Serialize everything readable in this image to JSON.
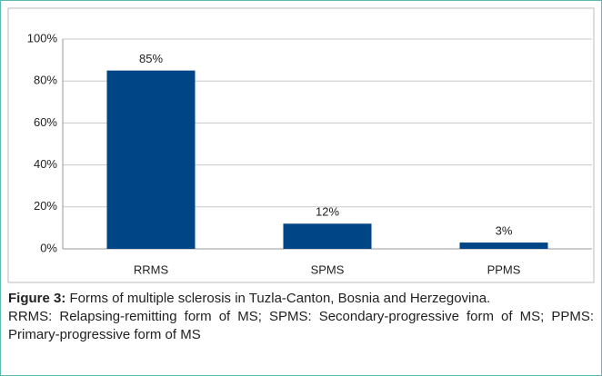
{
  "chart_data": {
    "type": "bar",
    "categories": [
      "RRMS",
      "SPMS",
      "PPMS"
    ],
    "values": [
      85,
      12,
      3
    ],
    "value_labels": [
      "85%",
      "12%",
      "3%"
    ],
    "color": "#004586",
    "ylim": [
      0,
      100
    ],
    "yticks": [
      {
        "value": 0,
        "label": "0%"
      },
      {
        "value": 20,
        "label": "20%"
      },
      {
        "value": 40,
        "label": "40%"
      },
      {
        "value": 60,
        "label": "60%"
      },
      {
        "value": 80,
        "label": "80%"
      },
      {
        "value": 100,
        "label": "100%"
      }
    ],
    "grid": true
  },
  "caption": {
    "label": "Figure 3:",
    "text": "Forms of multiple sclerosis in Tuzla-Canton, Bosnia and Herzegovina.",
    "note": "RRMS: Relapsing-remitting form of MS; SPMS: Secondary-progressive form of MS; PPMS: Primary-progressive form of MS"
  }
}
